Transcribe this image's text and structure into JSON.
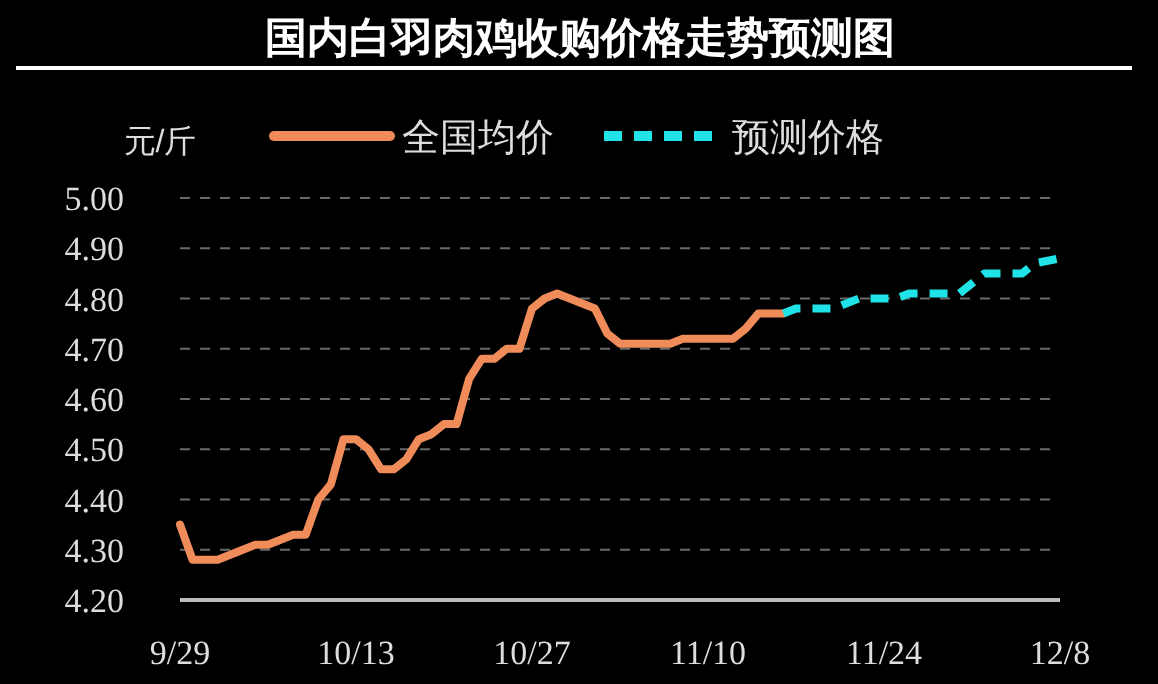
{
  "chart_data": {
    "type": "line",
    "title": "国内白羽肉鸡收购价格走势预测图",
    "ylabel": "元/斤",
    "xlim": [
      "--09-29",
      "--12-08"
    ],
    "xticks": [
      {
        "value": "--09-29",
        "label": "9/29"
      },
      {
        "value": "--10-13",
        "label": "10/13"
      },
      {
        "value": "--10-27",
        "label": "10/27"
      },
      {
        "value": "--11-10",
        "label": "11/10"
      },
      {
        "value": "--11-24",
        "label": "11/24"
      },
      {
        "value": "--12-08",
        "label": "12/8"
      }
    ],
    "ylim": [
      4.2,
      5.0
    ],
    "yticks": [
      {
        "value": 4.2,
        "label": "4.20"
      },
      {
        "value": 4.3,
        "label": "4.30"
      },
      {
        "value": 4.4,
        "label": "4.40"
      },
      {
        "value": 4.5,
        "label": "4.50"
      },
      {
        "value": 4.6,
        "label": "4.60"
      },
      {
        "value": 4.7,
        "label": "4.70"
      },
      {
        "value": 4.8,
        "label": "4.80"
      },
      {
        "value": 4.9,
        "label": "4.90"
      },
      {
        "value": 5.0,
        "label": "5.00"
      }
    ],
    "grid": "y",
    "legend": "top",
    "marker": "none",
    "series": [
      {
        "name": "全国均价",
        "color": "#f08c5a",
        "line_style": "solid",
        "x": [
          "--09-29",
          "--09-30",
          "--10-02",
          "--10-03",
          "--10-04",
          "--10-05",
          "--10-06",
          "--10-07",
          "--10-08",
          "--10-09",
          "--10-10",
          "--10-11",
          "--10-12",
          "--10-13",
          "--10-14",
          "--10-15",
          "--10-16",
          "--10-17",
          "--10-18",
          "--10-19",
          "--10-20",
          "--10-21",
          "--10-22",
          "--10-23",
          "--10-24",
          "--10-25",
          "--10-26",
          "--10-27",
          "--10-28",
          "--10-29",
          "--10-30",
          "--10-31",
          "--11-01",
          "--11-02",
          "--11-03",
          "--11-07",
          "--11-08",
          "--11-12",
          "--11-13",
          "--11-14",
          "--11-16"
        ],
        "values": [
          4.35,
          4.28,
          4.28,
          4.29,
          4.3,
          4.31,
          4.31,
          4.32,
          4.33,
          4.33,
          4.4,
          4.43,
          4.52,
          4.52,
          4.5,
          4.46,
          4.46,
          4.48,
          4.52,
          4.53,
          4.55,
          4.55,
          4.64,
          4.68,
          4.68,
          4.7,
          4.7,
          4.78,
          4.8,
          4.81,
          4.8,
          4.79,
          4.78,
          4.73,
          4.71,
          4.71,
          4.72,
          4.72,
          4.74,
          4.77,
          4.77
        ]
      },
      {
        "name": "预测价格",
        "color": "#1fe3e6",
        "line_style": "dashed",
        "x": [
          "--11-16",
          "--11-17",
          "--11-20",
          "--11-22",
          "--11-25",
          "--11-26",
          "--11-30",
          "--12-02",
          "--12-05",
          "--12-06",
          "--12-08"
        ],
        "values": [
          4.77,
          4.78,
          4.78,
          4.8,
          4.8,
          4.81,
          4.81,
          4.85,
          4.85,
          4.87,
          4.88
        ]
      }
    ]
  }
}
